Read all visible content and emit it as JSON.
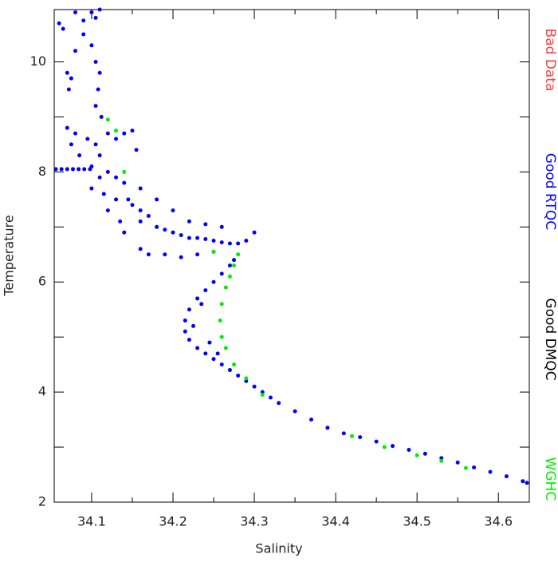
{
  "chart_data": {
    "type": "scatter",
    "xlabel": "Salinity",
    "ylabel": "Temperature",
    "xlim": [
      34.054,
      34.638
    ],
    "ylim": [
      2,
      10.95
    ],
    "xticks": [
      34.1,
      34.2,
      34.3,
      34.4,
      34.5,
      34.6
    ],
    "xminorticks": [
      34.15,
      34.25,
      34.35,
      34.45,
      34.55
    ],
    "yticks": [
      2,
      4,
      6,
      8,
      10
    ],
    "yminorticks": [
      3,
      5,
      7,
      9
    ],
    "series": [
      {
        "name": "Bad Data",
        "color": "#ff4040",
        "x": [],
        "y": []
      },
      {
        "name": "Good RTQC",
        "color": "#0000ff",
        "x": [
          34.06,
          34.065,
          34.08,
          34.09,
          34.1,
          34.105,
          34.11,
          34.07,
          34.072,
          34.075,
          34.08,
          34.09,
          34.1,
          34.105,
          34.11,
          34.108,
          34.105,
          34.112,
          34.07,
          34.075,
          34.08,
          34.085,
          34.095,
          34.105,
          34.11,
          34.12,
          34.13,
          34.14,
          34.15,
          34.155,
          34.056,
          34.063,
          34.07,
          34.077,
          34.084,
          34.091,
          34.098,
          34.1,
          34.11,
          34.12,
          34.13,
          34.14,
          34.1,
          34.115,
          34.13,
          34.145,
          34.15,
          34.16,
          34.12,
          34.135,
          34.16,
          34.17,
          34.18,
          34.19,
          34.2,
          34.21,
          34.22,
          34.23,
          34.24,
          34.25,
          34.26,
          34.27,
          34.28,
          34.29,
          34.3,
          34.26,
          34.24,
          34.22,
          34.2,
          34.18,
          34.16,
          34.14,
          34.16,
          34.17,
          34.19,
          34.21,
          34.23,
          34.25,
          34.275,
          34.27,
          34.26,
          34.25,
          34.24,
          34.23,
          34.22,
          34.215,
          34.215,
          34.22,
          34.23,
          34.24,
          34.25,
          34.26,
          34.27,
          34.28,
          34.29,
          34.3,
          34.31,
          34.32,
          34.33,
          34.35,
          34.37,
          34.39,
          34.41,
          34.43,
          34.45,
          34.47,
          34.49,
          34.51,
          34.53,
          34.55,
          34.57,
          34.59,
          34.61,
          34.63,
          34.635,
          34.235,
          34.225,
          34.245,
          34.255
        ],
        "y": [
          10.7,
          10.6,
          10.9,
          10.75,
          10.9,
          10.8,
          10.95,
          9.8,
          9.5,
          9.7,
          10.2,
          10.5,
          10.3,
          10.0,
          9.8,
          9.5,
          9.2,
          9.0,
          8.8,
          8.5,
          8.7,
          8.3,
          8.6,
          8.5,
          8.3,
          8.7,
          8.6,
          8.7,
          8.75,
          8.4,
          8.05,
          8.05,
          8.05,
          8.05,
          8.05,
          8.05,
          8.05,
          8.1,
          7.9,
          8.0,
          7.9,
          7.8,
          7.7,
          7.6,
          7.5,
          7.5,
          7.4,
          7.3,
          7.3,
          7.1,
          7.1,
          7.2,
          7.0,
          6.95,
          6.9,
          6.85,
          6.8,
          6.8,
          6.78,
          6.75,
          6.72,
          6.7,
          6.7,
          6.75,
          6.9,
          7.0,
          7.05,
          7.1,
          7.3,
          7.5,
          7.7,
          6.9,
          6.6,
          6.5,
          6.5,
          6.45,
          6.5,
          6.55,
          6.4,
          6.3,
          6.15,
          6.0,
          5.85,
          5.7,
          5.5,
          5.3,
          5.1,
          4.95,
          4.8,
          4.7,
          4.6,
          4.5,
          4.4,
          4.3,
          4.2,
          4.1,
          4.0,
          3.9,
          3.8,
          3.65,
          3.5,
          3.35,
          3.25,
          3.18,
          3.1,
          3.02,
          2.95,
          2.88,
          2.8,
          2.72,
          2.63,
          2.55,
          2.47,
          2.38,
          2.35,
          5.6,
          5.2,
          4.9,
          4.7
        ]
      },
      {
        "name": "Good DMQC",
        "color": "#000000",
        "x": [],
        "y": []
      },
      {
        "name": "WGHC",
        "color": "#00ee00",
        "x": [
          34.12,
          34.13,
          34.14,
          34.25,
          34.28,
          34.275,
          34.27,
          34.265,
          34.26,
          34.258,
          34.26,
          34.265,
          34.275,
          34.29,
          34.31,
          34.42,
          34.46,
          34.5,
          34.53,
          34.56
        ],
        "y": [
          8.95,
          8.75,
          8.0,
          6.55,
          6.5,
          6.3,
          6.1,
          5.9,
          5.6,
          5.3,
          5.0,
          4.8,
          4.5,
          4.25,
          3.95,
          3.2,
          3.0,
          2.85,
          2.75,
          2.62
        ]
      }
    ]
  }
}
